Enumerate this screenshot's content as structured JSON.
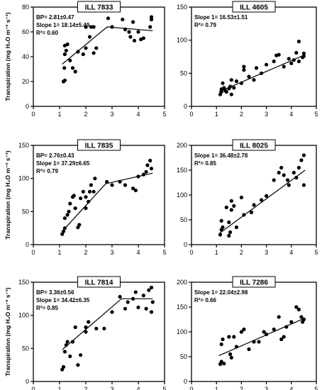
{
  "chart_data": [
    {
      "type": "scatter",
      "title": "ILL 7833",
      "annotations": [
        "BP= 2.81±0.47",
        "Slope 1= 18.14±5.49",
        "R²= 0.60"
      ],
      "xlabel": "",
      "ylabel": "Transpiration (mg H₂O m⁻² s⁻¹)",
      "xlim": [
        0,
        5
      ],
      "ylim": [
        0,
        80
      ],
      "xticks": [
        0,
        1,
        2,
        3,
        4,
        5
      ],
      "yticks": [
        0,
        20,
        40,
        60,
        80
      ],
      "points": [
        [
          1.15,
          20
        ],
        [
          1.2,
          21
        ],
        [
          1.18,
          31
        ],
        [
          1.2,
          42
        ],
        [
          1.25,
          45
        ],
        [
          1.2,
          49
        ],
        [
          1.3,
          50
        ],
        [
          1.4,
          37
        ],
        [
          1.5,
          31
        ],
        [
          1.6,
          28
        ],
        [
          1.7,
          44
        ],
        [
          1.9,
          42
        ],
        [
          2.0,
          47
        ],
        [
          2.0,
          64
        ],
        [
          2.15,
          56
        ],
        [
          2.2,
          64
        ],
        [
          2.3,
          64
        ],
        [
          2.3,
          43
        ],
        [
          2.4,
          47
        ],
        [
          2.85,
          71
        ],
        [
          3.0,
          64
        ],
        [
          3.4,
          70
        ],
        [
          3.5,
          62
        ],
        [
          3.65,
          60
        ],
        [
          3.7,
          56
        ],
        [
          3.8,
          68
        ],
        [
          3.85,
          53
        ],
        [
          4.0,
          60
        ],
        [
          4.1,
          54
        ],
        [
          4.2,
          55
        ],
        [
          4.45,
          64
        ],
        [
          4.5,
          70
        ],
        [
          4.5,
          72
        ]
      ],
      "fit": [
        [
          1.1,
          34
        ],
        [
          2.81,
          64
        ],
        [
          4.55,
          61
        ]
      ]
    },
    {
      "type": "scatter",
      "title": "ILL 4605",
      "annotations": [
        "Slope 1= 16.53±1.51",
        "R²= 0.79"
      ],
      "xlabel": "",
      "ylabel": "",
      "xlim": [
        0,
        5
      ],
      "ylim": [
        0,
        150
      ],
      "xticks": [
        0,
        1,
        2,
        3,
        4,
        5
      ],
      "yticks": [
        0,
        50,
        100,
        150
      ],
      "points": [
        [
          1.15,
          18
        ],
        [
          1.2,
          22
        ],
        [
          1.2,
          26
        ],
        [
          1.25,
          35
        ],
        [
          1.3,
          28
        ],
        [
          1.35,
          24
        ],
        [
          1.4,
          22
        ],
        [
          1.5,
          27
        ],
        [
          1.55,
          30
        ],
        [
          1.6,
          18
        ],
        [
          1.6,
          40
        ],
        [
          1.7,
          28
        ],
        [
          1.8,
          38
        ],
        [
          2.0,
          35
        ],
        [
          2.1,
          55
        ],
        [
          2.1,
          60
        ],
        [
          2.3,
          45
        ],
        [
          2.5,
          40
        ],
        [
          2.6,
          58
        ],
        [
          2.8,
          50
        ],
        [
          3.0,
          63
        ],
        [
          3.3,
          68
        ],
        [
          3.4,
          77
        ],
        [
          3.5,
          78
        ],
        [
          3.7,
          60
        ],
        [
          3.9,
          72
        ],
        [
          4.0,
          65
        ],
        [
          4.1,
          70
        ],
        [
          4.2,
          81
        ],
        [
          4.3,
          68
        ],
        [
          4.3,
          98
        ],
        [
          4.45,
          74
        ],
        [
          4.5,
          80
        ],
        [
          4.5,
          76
        ]
      ],
      "fit": [
        [
          1.1,
          22
        ],
        [
          4.55,
          78
        ]
      ]
    },
    {
      "type": "scatter",
      "title": "ILL 7835",
      "annotations": [
        "BP= 2.76±0.43",
        "Slope 1= 37.29±6.65",
        "R²= 0.79"
      ],
      "xlabel": "",
      "ylabel": "Transpiration (mg H₂O m⁻² s⁻¹)",
      "xlim": [
        0,
        5
      ],
      "ylim": [
        0,
        150
      ],
      "xticks": [
        0,
        1,
        2,
        3,
        4,
        5
      ],
      "yticks": [
        0,
        50,
        100,
        150
      ],
      "points": [
        [
          1.1,
          16
        ],
        [
          1.15,
          20
        ],
        [
          1.2,
          25
        ],
        [
          1.2,
          40
        ],
        [
          1.3,
          45
        ],
        [
          1.35,
          50
        ],
        [
          1.4,
          62
        ],
        [
          1.5,
          72
        ],
        [
          1.55,
          74
        ],
        [
          1.6,
          55
        ],
        [
          1.7,
          26
        ],
        [
          1.75,
          30
        ],
        [
          1.8,
          70
        ],
        [
          1.9,
          80
        ],
        [
          2.0,
          55
        ],
        [
          2.0,
          72
        ],
        [
          2.1,
          65
        ],
        [
          2.15,
          80
        ],
        [
          2.2,
          90
        ],
        [
          2.3,
          80
        ],
        [
          2.35,
          100
        ],
        [
          2.8,
          95
        ],
        [
          3.0,
          90
        ],
        [
          3.3,
          95
        ],
        [
          3.5,
          90
        ],
        [
          3.8,
          85
        ],
        [
          3.9,
          82
        ],
        [
          4.0,
          103
        ],
        [
          4.2,
          106
        ],
        [
          4.3,
          110
        ],
        [
          4.35,
          120
        ],
        [
          4.45,
          127
        ],
        [
          4.5,
          115
        ]
      ],
      "fit": [
        [
          1.1,
          20
        ],
        [
          2.76,
          92
        ],
        [
          4.55,
          108
        ]
      ]
    },
    {
      "type": "scatter",
      "title": "ILL 8025",
      "annotations": [
        "Slope 1= 36.48±2.78",
        "R²= 0.85"
      ],
      "xlabel": "",
      "ylabel": "",
      "xlim": [
        0,
        5
      ],
      "ylim": [
        0,
        200
      ],
      "xticks": [
        0,
        1,
        2,
        3,
        4,
        5
      ],
      "yticks": [
        0,
        50,
        100,
        150,
        200
      ],
      "points": [
        [
          1.15,
          20
        ],
        [
          1.2,
          30
        ],
        [
          1.2,
          48
        ],
        [
          1.25,
          35
        ],
        [
          1.4,
          75
        ],
        [
          1.5,
          18
        ],
        [
          1.5,
          45
        ],
        [
          1.55,
          25
        ],
        [
          1.6,
          88
        ],
        [
          1.6,
          70
        ],
        [
          1.7,
          78
        ],
        [
          1.8,
          35
        ],
        [
          2.0,
          95
        ],
        [
          2.1,
          60
        ],
        [
          2.4,
          65
        ],
        [
          2.5,
          80
        ],
        [
          2.8,
          90
        ],
        [
          3.0,
          98
        ],
        [
          3.3,
          130
        ],
        [
          3.5,
          145
        ],
        [
          3.6,
          155
        ],
        [
          3.7,
          140
        ],
        [
          3.85,
          130
        ],
        [
          3.9,
          120
        ],
        [
          4.1,
          145
        ],
        [
          4.2,
          135
        ],
        [
          4.3,
          155
        ],
        [
          4.4,
          170
        ],
        [
          4.5,
          180
        ],
        [
          4.5,
          120
        ]
      ],
      "fit": [
        [
          1.1,
          22
        ],
        [
          4.55,
          150
        ]
      ]
    },
    {
      "type": "scatter",
      "title": "ILL 7814",
      "annotations": [
        "BP= 3.36±0.56",
        "Slope 1= 34.42±6.35",
        "R²= 0.85"
      ],
      "xlabel": "VPD (KPa)",
      "ylabel": "Transpiration (mg H₂O m⁻² s⁻¹)",
      "xlim": [
        0,
        5
      ],
      "ylim": [
        0,
        150
      ],
      "xticks": [
        0,
        1,
        2,
        3,
        4,
        5
      ],
      "yticks": [
        0,
        50,
        100,
        150
      ],
      "points": [
        [
          1.1,
          18
        ],
        [
          1.15,
          22
        ],
        [
          1.2,
          45
        ],
        [
          1.25,
          55
        ],
        [
          1.3,
          60
        ],
        [
          1.4,
          38
        ],
        [
          1.5,
          60
        ],
        [
          1.6,
          82
        ],
        [
          1.7,
          25
        ],
        [
          1.8,
          40
        ],
        [
          2.0,
          75
        ],
        [
          2.0,
          82
        ],
        [
          2.1,
          90
        ],
        [
          2.4,
          80
        ],
        [
          2.7,
          80
        ],
        [
          3.0,
          105
        ],
        [
          3.3,
          128
        ],
        [
          3.5,
          110
        ],
        [
          3.6,
          120
        ],
        [
          3.8,
          125
        ],
        [
          3.9,
          135
        ],
        [
          4.0,
          112
        ],
        [
          4.2,
          130
        ],
        [
          4.3,
          110
        ],
        [
          4.4,
          138
        ],
        [
          4.5,
          142
        ],
        [
          4.5,
          105
        ],
        [
          4.55,
          120
        ]
      ],
      "fit": [
        [
          1.1,
          48
        ],
        [
          3.36,
          125
        ],
        [
          4.55,
          125
        ]
      ]
    },
    {
      "type": "scatter",
      "title": "ILL 7286",
      "annotations": [
        "Slope 1= 22.04±2.98",
        "R²= 0.66"
      ],
      "xlabel": "VPD (KPa)",
      "ylabel": "",
      "xlim": [
        0,
        5
      ],
      "ylim": [
        0,
        200
      ],
      "xticks": [
        0,
        1,
        2,
        3,
        4,
        5
      ],
      "yticks": [
        0,
        50,
        100,
        150,
        200
      ],
      "points": [
        [
          1.15,
          35
        ],
        [
          1.2,
          40
        ],
        [
          1.2,
          75
        ],
        [
          1.25,
          85
        ],
        [
          1.3,
          36
        ],
        [
          1.5,
          90
        ],
        [
          1.55,
          55
        ],
        [
          1.6,
          48
        ],
        [
          1.7,
          90
        ],
        [
          1.8,
          70
        ],
        [
          2.0,
          100
        ],
        [
          2.1,
          105
        ],
        [
          2.3,
          65
        ],
        [
          2.5,
          80
        ],
        [
          2.7,
          80
        ],
        [
          2.9,
          100
        ],
        [
          3.0,
          95
        ],
        [
          3.3,
          105
        ],
        [
          3.5,
          130
        ],
        [
          3.6,
          85
        ],
        [
          3.7,
          90
        ],
        [
          3.8,
          110
        ],
        [
          4.0,
          120
        ],
        [
          4.2,
          150
        ],
        [
          4.3,
          145
        ],
        [
          4.4,
          130
        ],
        [
          4.45,
          120
        ],
        [
          4.5,
          125
        ]
      ],
      "fit": [
        [
          1.1,
          52
        ],
        [
          4.55,
          128
        ]
      ]
    }
  ]
}
